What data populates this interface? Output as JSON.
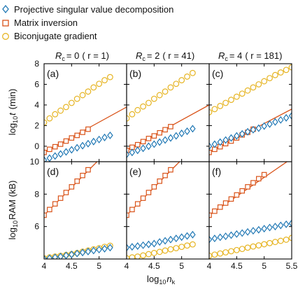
{
  "colors": {
    "psvd": "#1f77b4",
    "mi": "#d95319",
    "bcg": "#e6b422",
    "frame": "#000000"
  },
  "legend": {
    "entries": [
      {
        "series": "psvd",
        "marker": "diamond",
        "label": "Projective singular value decomposition"
      },
      {
        "series": "mi",
        "marker": "square",
        "label": "Matrix inversion"
      },
      {
        "series": "bcg",
        "marker": "circle",
        "label": "Biconjugate gradient"
      }
    ]
  },
  "columns": [
    {
      "rc_symbol": "R",
      "rc_sub": "c",
      "rc_value": "= 0",
      "r_text": "( r = 1)"
    },
    {
      "rc_symbol": "R",
      "rc_sub": "c",
      "rc_value": "= 2",
      "r_text": "( r = 41)"
    },
    {
      "rc_symbol": "R",
      "rc_sub": "c",
      "rc_value": "= 4",
      "r_text": "( r = 181)"
    }
  ],
  "axes": {
    "x_label_main": "log",
    "x_label_sub": "10",
    "x_label_var": "n",
    "x_label_var_sub": "k",
    "top_y_label_main": "log",
    "top_y_label_sub": "10",
    "top_y_label_var": "t",
    "top_y_label_unit": "(min)",
    "bottom_y_label_main": "log",
    "bottom_y_label_sub": "10",
    "bottom_y_label_unit": "RAM (kB)"
  },
  "chart_data": [
    {
      "type": "scatter",
      "panel": "(a)",
      "row": 0,
      "col": 0,
      "xlim": [
        4,
        5.5
      ],
      "ylim": [
        -1.5,
        8
      ],
      "yticks": [
        0,
        2,
        4,
        6,
        8
      ],
      "xticks": [
        4,
        4.5,
        5
      ],
      "series": [
        {
          "key": "bcg",
          "x": [
            4.0,
            4.1,
            4.2,
            4.3,
            4.4,
            4.5,
            4.6,
            4.7,
            4.8,
            4.9,
            5.0,
            5.1,
            5.2
          ],
          "y": [
            2.3,
            2.7,
            3.1,
            3.45,
            3.8,
            4.2,
            4.6,
            4.95,
            5.3,
            5.7,
            6.05,
            6.4,
            6.7
          ]
        },
        {
          "key": "mi",
          "x": [
            4.0,
            4.1,
            4.2,
            4.3,
            4.4,
            4.5,
            4.6,
            4.7,
            4.8
          ],
          "y": [
            -0.6,
            -0.3,
            -0.05,
            0.2,
            0.5,
            0.8,
            1.05,
            1.35,
            1.65
          ],
          "line_to": [
            5.5,
            3.8
          ]
        },
        {
          "key": "psvd",
          "x": [
            4.0,
            4.1,
            4.2,
            4.3,
            4.4,
            4.5,
            4.6,
            4.7,
            4.8,
            4.9,
            5.0,
            5.1,
            5.2
          ],
          "y": [
            -1.35,
            -1.15,
            -0.95,
            -0.75,
            -0.55,
            -0.35,
            -0.15,
            0.05,
            0.25,
            0.45,
            0.65,
            0.85,
            1.05
          ]
        }
      ]
    },
    {
      "type": "scatter",
      "panel": "(b)",
      "row": 0,
      "col": 1,
      "xlim": [
        4,
        5.5
      ],
      "ylim": [
        -1.5,
        8
      ],
      "series": [
        {
          "key": "bcg",
          "x": [
            4.0,
            4.1,
            4.2,
            4.3,
            4.4,
            4.5,
            4.6,
            4.7,
            4.8,
            4.9,
            5.0,
            5.1,
            5.2
          ],
          "y": [
            2.7,
            3.1,
            3.5,
            3.85,
            4.2,
            4.6,
            4.95,
            5.3,
            5.7,
            6.05,
            6.4,
            6.75,
            7.1
          ]
        },
        {
          "key": "mi",
          "x": [
            4.0,
            4.1,
            4.2,
            4.3,
            4.4,
            4.5,
            4.6,
            4.7,
            4.8
          ],
          "y": [
            -0.4,
            -0.1,
            0.15,
            0.45,
            0.75,
            1.0,
            1.3,
            1.6,
            1.9
          ],
          "line_to": [
            5.5,
            4.0
          ]
        },
        {
          "key": "psvd",
          "x": [
            4.0,
            4.1,
            4.2,
            4.3,
            4.4,
            4.5,
            4.6,
            4.7,
            4.8,
            4.9,
            5.0,
            5.1,
            5.2
          ],
          "y": [
            -0.8,
            -0.6,
            -0.4,
            -0.2,
            0.0,
            0.2,
            0.4,
            0.6,
            0.8,
            1.0,
            1.25,
            1.45,
            1.7
          ]
        }
      ]
    },
    {
      "type": "scatter",
      "panel": "(c)",
      "row": 0,
      "col": 2,
      "xlim": [
        4,
        5.5
      ],
      "ylim": [
        -1.5,
        8
      ],
      "series": [
        {
          "key": "bcg",
          "x": [
            4.0,
            4.1,
            4.2,
            4.3,
            4.4,
            4.5,
            4.6,
            4.7,
            4.8,
            4.9,
            5.0,
            5.1,
            5.2,
            5.3,
            5.4,
            5.5
          ],
          "y": [
            3.3,
            3.6,
            3.9,
            4.2,
            4.5,
            4.8,
            5.1,
            5.4,
            5.7,
            6.0,
            6.3,
            6.6,
            6.9,
            7.15,
            7.4,
            7.65
          ]
        },
        {
          "key": "mi",
          "x": [
            4.0,
            4.1,
            4.2,
            4.3,
            4.4,
            4.5,
            4.6,
            4.7,
            4.8
          ],
          "y": [
            -0.6,
            -0.3,
            -0.05,
            0.25,
            0.5,
            0.8,
            1.1,
            1.35,
            1.65
          ],
          "line_to": [
            5.5,
            3.6
          ]
        },
        {
          "key": "psvd",
          "x": [
            4.0,
            4.1,
            4.2,
            4.3,
            4.4,
            4.5,
            4.6,
            4.7,
            4.8,
            4.9,
            5.0,
            5.1,
            5.2,
            5.3,
            5.4,
            5.5
          ],
          "y": [
            0.0,
            0.2,
            0.4,
            0.6,
            0.8,
            1.0,
            1.2,
            1.4,
            1.6,
            1.75,
            1.95,
            2.15,
            2.35,
            2.55,
            2.75,
            2.95
          ]
        }
      ]
    },
    {
      "type": "scatter",
      "panel": "(d)",
      "row": 1,
      "col": 0,
      "xlim": [
        4,
        5.5
      ],
      "ylim": [
        4,
        10
      ],
      "yticks": [
        6,
        8,
        10
      ],
      "xticks": [
        4,
        4.5,
        5
      ],
      "series": [
        {
          "key": "mi",
          "x": [
            4.0,
            4.1,
            4.2,
            4.3,
            4.4,
            4.5,
            4.6,
            4.7,
            4.8
          ],
          "y": [
            6.7,
            7.05,
            7.4,
            7.75,
            8.1,
            8.45,
            8.8,
            9.15,
            9.5
          ],
          "line_to": [
            5.05,
            10.3
          ]
        },
        {
          "key": "bcg",
          "x": [
            4.0,
            4.1,
            4.2,
            4.3,
            4.4,
            4.5,
            4.6,
            4.7,
            4.8,
            4.9,
            5.0,
            5.1,
            5.2
          ],
          "y": [
            4.05,
            4.1,
            4.15,
            4.2,
            4.25,
            4.3,
            4.37,
            4.45,
            4.52,
            4.6,
            4.67,
            4.75,
            4.82
          ]
        },
        {
          "key": "psvd",
          "x": [
            4.0,
            4.1,
            4.2,
            4.3,
            4.4,
            4.5,
            4.6,
            4.7,
            4.8,
            4.9,
            5.0,
            5.1,
            5.2
          ],
          "y": [
            4.0,
            4.05,
            4.1,
            4.15,
            4.22,
            4.28,
            4.34,
            4.4,
            4.46,
            4.52,
            4.58,
            4.63,
            4.7
          ]
        }
      ]
    },
    {
      "type": "scatter",
      "panel": "(e)",
      "row": 1,
      "col": 1,
      "xlim": [
        4,
        5.5
      ],
      "ylim": [
        4,
        10
      ],
      "series": [
        {
          "key": "mi",
          "x": [
            4.0,
            4.1,
            4.2,
            4.3,
            4.4,
            4.5,
            4.6,
            4.7,
            4.8
          ],
          "y": [
            6.7,
            7.05,
            7.4,
            7.75,
            8.1,
            8.45,
            8.8,
            9.15,
            9.5
          ],
          "line_to": [
            5.05,
            10.3
          ]
        },
        {
          "key": "psvd",
          "x": [
            4.0,
            4.1,
            4.2,
            4.3,
            4.4,
            4.5,
            4.6,
            4.7,
            4.8,
            4.9,
            5.0,
            5.1,
            5.2
          ],
          "y": [
            4.7,
            4.75,
            4.8,
            4.85,
            4.9,
            4.95,
            5.05,
            5.12,
            5.2,
            5.27,
            5.35,
            5.42,
            5.5
          ]
        },
        {
          "key": "bcg",
          "x": [
            4.0,
            4.1,
            4.2,
            4.3,
            4.4,
            4.5,
            4.6,
            4.7,
            4.8,
            4.9,
            5.0,
            5.1,
            5.2
          ],
          "y": [
            4.05,
            4.1,
            4.15,
            4.22,
            4.3,
            4.37,
            4.44,
            4.52,
            4.6,
            4.67,
            4.75,
            4.83,
            4.9
          ]
        }
      ]
    },
    {
      "type": "scatter",
      "panel": "(f)",
      "row": 1,
      "col": 2,
      "xlim": [
        4,
        5.5
      ],
      "ylim": [
        4,
        10
      ],
      "xticks": [
        4,
        4.5,
        5,
        5.5
      ],
      "series": [
        {
          "key": "mi",
          "x": [
            4.0,
            4.1,
            4.2,
            4.3,
            4.4,
            4.5,
            4.6,
            4.7,
            4.8,
            4.9,
            5.0
          ],
          "y": [
            6.7,
            6.95,
            7.2,
            7.45,
            7.7,
            7.95,
            8.2,
            8.45,
            8.7,
            8.95,
            9.2
          ],
          "line_to": [
            5.5,
            10.2
          ]
        },
        {
          "key": "psvd",
          "x": [
            4.0,
            4.1,
            4.2,
            4.3,
            4.4,
            4.5,
            4.6,
            4.7,
            4.8,
            4.9,
            5.0,
            5.1,
            5.2,
            5.3,
            5.4,
            5.5
          ],
          "y": [
            5.2,
            5.27,
            5.34,
            5.4,
            5.47,
            5.54,
            5.6,
            5.67,
            5.74,
            5.8,
            5.87,
            5.94,
            6.0,
            6.07,
            6.14,
            6.2
          ]
        },
        {
          "key": "bcg",
          "x": [
            4.0,
            4.1,
            4.2,
            4.3,
            4.4,
            4.5,
            4.6,
            4.7,
            4.8,
            4.9,
            5.0,
            5.1,
            5.2,
            5.3,
            5.4,
            5.5
          ],
          "y": [
            4.2,
            4.27,
            4.34,
            4.41,
            4.48,
            4.55,
            4.62,
            4.7,
            4.77,
            4.84,
            4.91,
            4.98,
            5.05,
            5.12,
            5.19,
            5.3
          ]
        }
      ]
    }
  ]
}
